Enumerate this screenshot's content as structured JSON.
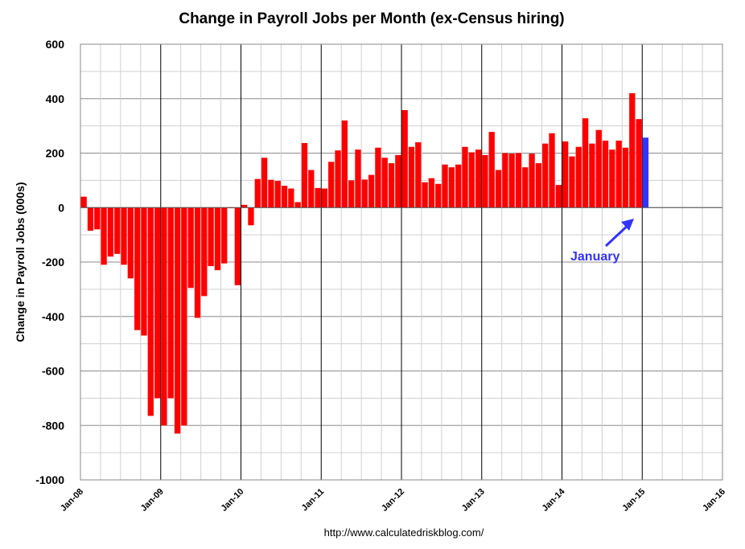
{
  "chart_data": {
    "type": "bar",
    "title": "Change in Payroll Jobs per Month (ex-Census hiring)",
    "xlabel": "",
    "ylabel": "Change in Payroll Jobs (000s)",
    "ylim": [
      -1000,
      600
    ],
    "yticks": [
      600,
      400,
      200,
      0,
      -200,
      -400,
      -600,
      -800,
      -1000
    ],
    "xlim": [
      "Jan-08",
      "Jan-16"
    ],
    "x_tick_labels": [
      "Jan-08",
      "Jan-09",
      "Jan-10",
      "Jan-11",
      "Jan-12",
      "Jan-13",
      "Jan-14",
      "Jan-15",
      "Jan-16"
    ],
    "grid": true,
    "legend": "none",
    "start_month": "Jan-08",
    "bar_color": "#ff0000",
    "highlight_color": "#3333ff",
    "highlight_last": true,
    "values": [
      40,
      -85,
      -80,
      -210,
      -180,
      -170,
      -210,
      -260,
      -450,
      -470,
      -765,
      -700,
      -800,
      -700,
      -830,
      -800,
      -295,
      -405,
      -325,
      -215,
      -230,
      -205,
      0,
      -285,
      10,
      -65,
      105,
      183,
      102,
      98,
      80,
      70,
      20,
      237,
      138,
      72,
      70,
      168,
      210,
      320,
      100,
      213,
      103,
      120,
      220,
      183,
      163,
      193,
      358,
      223,
      240,
      93,
      108,
      87,
      158,
      148,
      158,
      223,
      203,
      213,
      193,
      278,
      138,
      200,
      198,
      200,
      148,
      198,
      163,
      235,
      273,
      83,
      243,
      188,
      223,
      328,
      235,
      285,
      246,
      213,
      246,
      220,
      420,
      325,
      257
    ],
    "annotations": [
      {
        "text": "January",
        "color": "#3333ff"
      }
    ]
  },
  "source": "http://www.calculatedriskblog.com/"
}
